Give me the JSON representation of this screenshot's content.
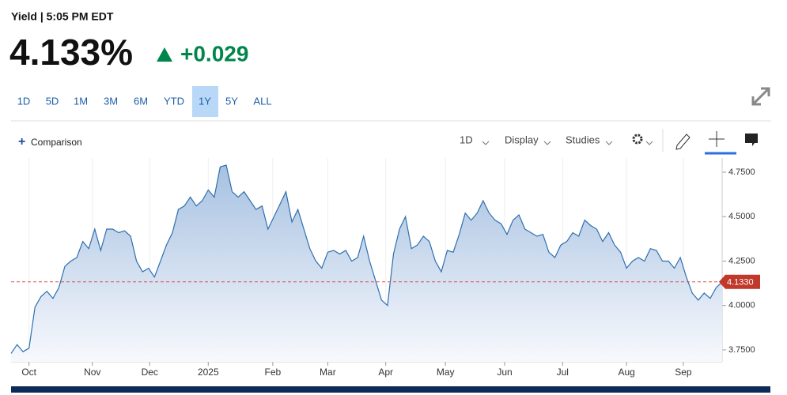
{
  "header": {
    "label": "Yield | 5:05 PM EDT",
    "price": "4.133%",
    "change": "+0.029"
  },
  "range_buttons": [
    "1D",
    "5D",
    "1M",
    "3M",
    "6M",
    "YTD",
    "1Y",
    "5Y",
    "ALL"
  ],
  "active_range": "1Y",
  "toolbar": {
    "comparison": "Comparison",
    "interval": "1D",
    "display": "Display",
    "studies": "Studies"
  },
  "chart_data": {
    "type": "area",
    "color": "#2e6fae",
    "values": [
      3.73,
      3.78,
      3.74,
      3.76,
      3.99,
      4.05,
      4.08,
      4.04,
      4.1,
      4.22,
      4.25,
      4.27,
      4.36,
      4.32,
      4.43,
      4.31,
      4.43,
      4.43,
      4.41,
      4.42,
      4.39,
      4.25,
      4.19,
      4.21,
      4.16,
      4.25,
      4.34,
      4.41,
      4.54,
      4.56,
      4.61,
      4.56,
      4.59,
      4.65,
      4.61,
      4.78,
      4.79,
      4.64,
      4.61,
      4.64,
      4.59,
      4.54,
      4.56,
      4.43,
      4.5,
      4.57,
      4.64,
      4.47,
      4.54,
      4.43,
      4.32,
      4.25,
      4.21,
      4.3,
      4.31,
      4.29,
      4.31,
      4.25,
      4.27,
      4.39,
      4.25,
      4.14,
      4.03,
      4.0,
      4.29,
      4.43,
      4.5,
      4.32,
      4.34,
      4.39,
      4.36,
      4.25,
      4.19,
      4.31,
      4.3,
      4.4,
      4.52,
      4.48,
      4.52,
      4.59,
      4.52,
      4.48,
      4.46,
      4.4,
      4.48,
      4.51,
      4.43,
      4.41,
      4.39,
      4.4,
      4.3,
      4.27,
      4.34,
      4.36,
      4.41,
      4.39,
      4.48,
      4.45,
      4.43,
      4.36,
      4.41,
      4.34,
      4.3,
      4.21,
      4.25,
      4.27,
      4.25,
      4.32,
      4.31,
      4.25,
      4.25,
      4.21,
      4.27,
      4.16,
      4.07,
      4.03,
      4.07,
      4.04,
      4.1,
      4.133
    ],
    "xlim": [
      0,
      119
    ],
    "xticks": [
      {
        "value": 3.0,
        "label": "Oct"
      },
      {
        "value": 13.6,
        "label": "Nov"
      },
      {
        "value": 23.2,
        "label": "Dec"
      },
      {
        "value": 33.0,
        "label": "2025"
      },
      {
        "value": 43.8,
        "label": "Feb"
      },
      {
        "value": 53.0,
        "label": "Mar"
      },
      {
        "value": 62.7,
        "label": "Apr"
      },
      {
        "value": 72.7,
        "label": "May"
      },
      {
        "value": 82.6,
        "label": "Jun"
      },
      {
        "value": 92.3,
        "label": "Jul"
      },
      {
        "value": 103.0,
        "label": "Aug"
      },
      {
        "value": 112.5,
        "label": "Sep"
      }
    ],
    "ylim": [
      3.683,
      4.83
    ],
    "yticks": [
      {
        "value": 3.75,
        "label": "3.7500"
      },
      {
        "value": 4.0,
        "label": "4.0000"
      },
      {
        "value": 4.25,
        "label": "4.2500"
      },
      {
        "value": 4.5,
        "label": "4.5000"
      },
      {
        "value": 4.75,
        "label": "4.7500"
      }
    ],
    "last_value": {
      "value": 4.133,
      "label": "4.1330"
    },
    "grid": true
  }
}
